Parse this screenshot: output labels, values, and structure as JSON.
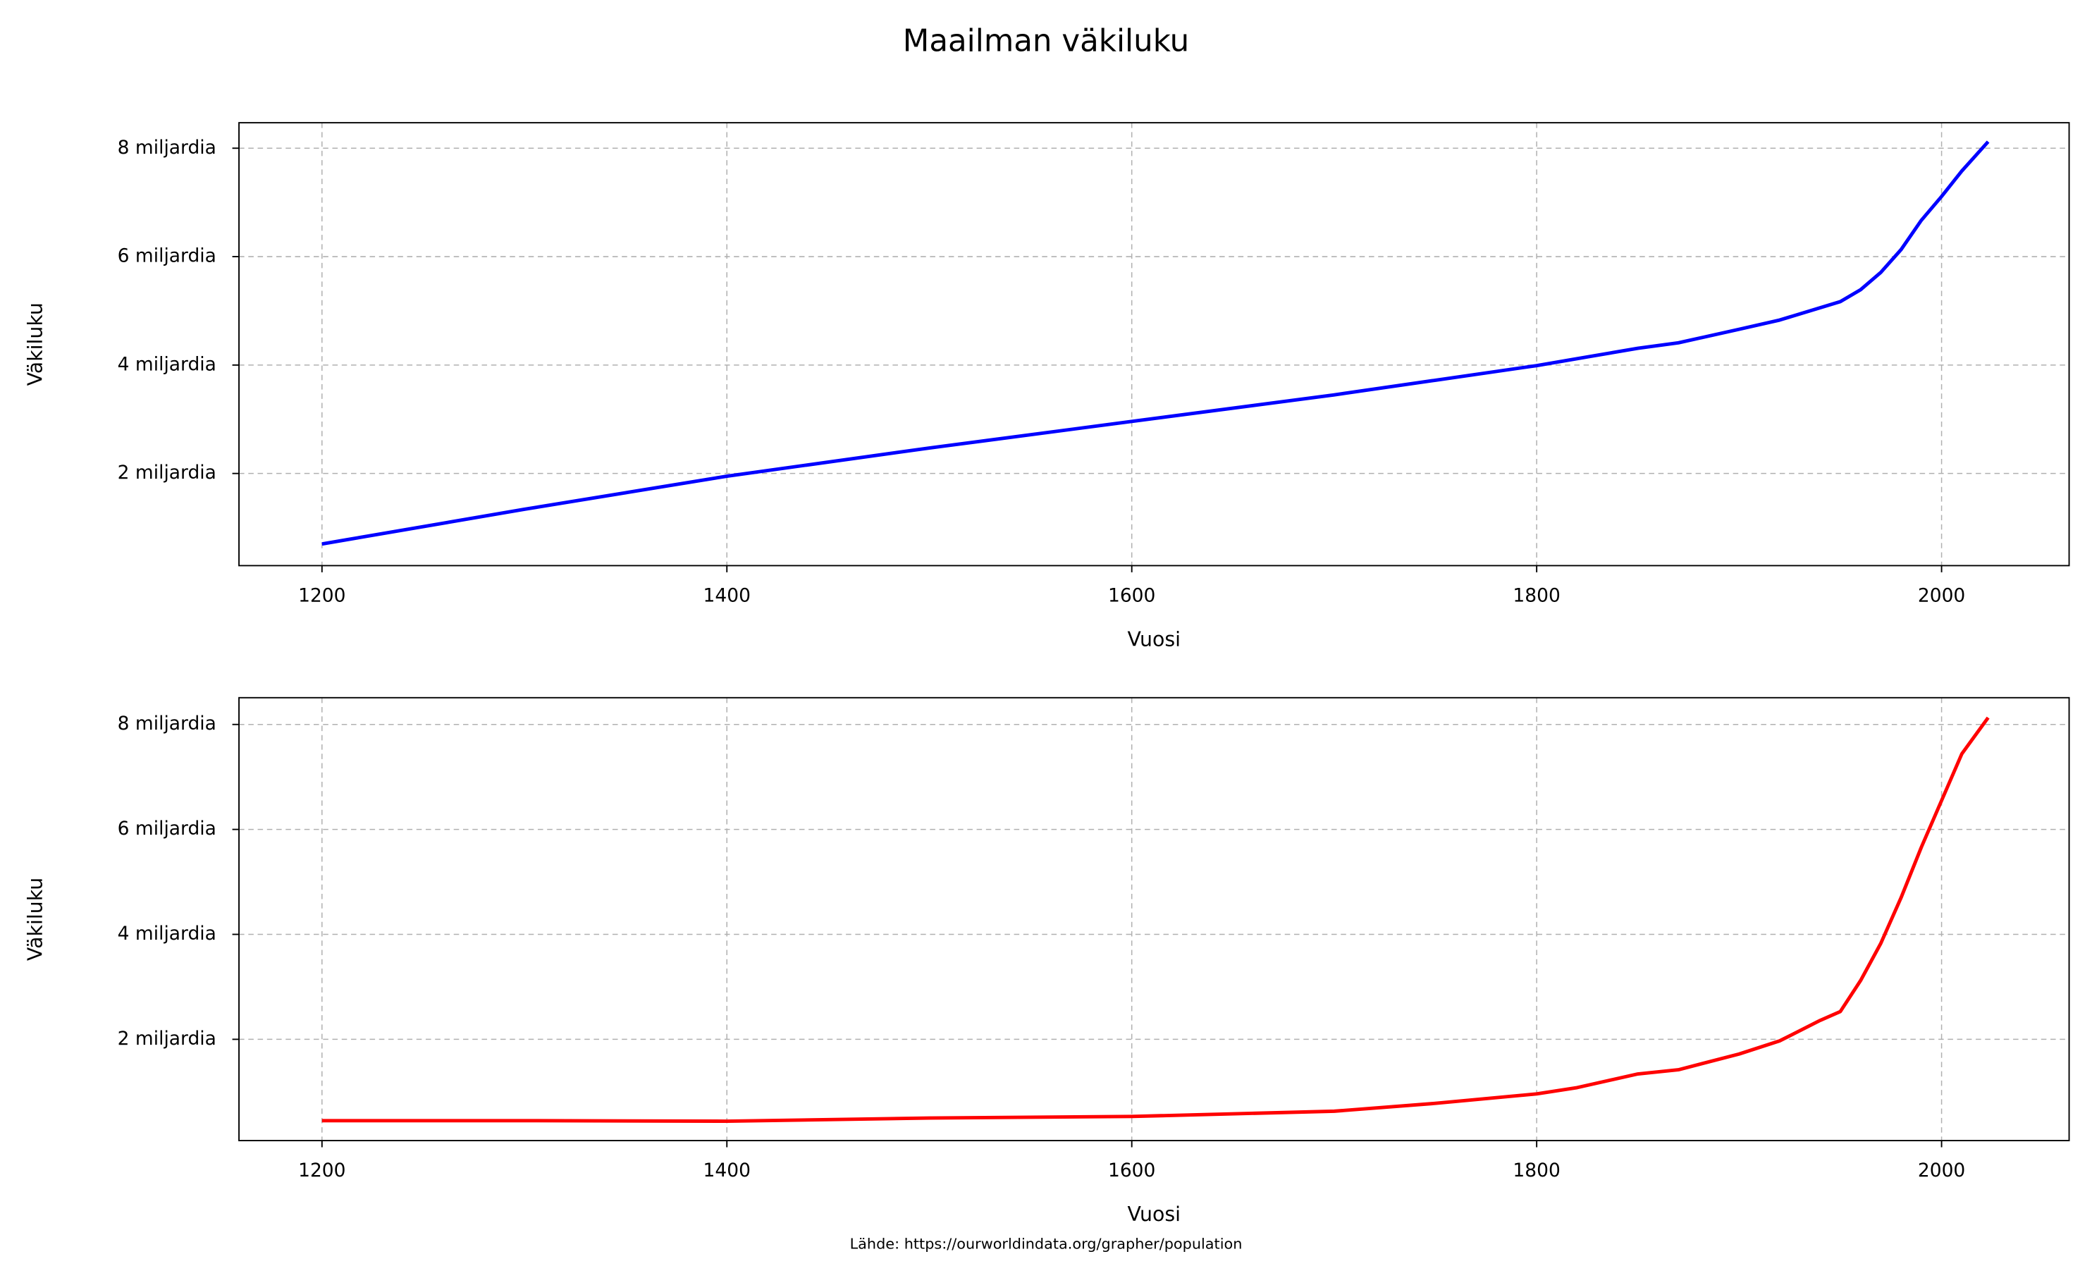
{
  "title": "Maailman väkiluku",
  "source": "Lähde: https://ourworldindata.org/grapher/population",
  "chart_data": [
    {
      "type": "line",
      "xlabel": "Vuosi",
      "ylabel": "Väkiluku",
      "color": "#0000ff",
      "grid": true,
      "x": [
        1200,
        1300,
        1400,
        1500,
        1600,
        1700,
        1750,
        1800,
        1850,
        1870,
        1900,
        1920,
        1950,
        1960,
        1970,
        1980,
        1990,
        2000,
        2010,
        2023
      ],
      "values": [
        0.7,
        1.34,
        1.95,
        2.47,
        2.96,
        3.45,
        3.72,
        3.99,
        4.31,
        4.41,
        4.66,
        4.83,
        5.17,
        5.39,
        5.71,
        6.13,
        6.67,
        7.11,
        7.58,
        8.12
      ],
      "xlim": [
        1159,
        2063
      ],
      "xticks": [
        1200,
        1400,
        1600,
        1800,
        2000
      ],
      "ylim": [
        0.3,
        8.47
      ],
      "yticks": [
        {
          "value": 2,
          "label": "2 miljardia"
        },
        {
          "value": 4,
          "label": "4 miljardia"
        },
        {
          "value": 6,
          "label": "6 miljardia"
        },
        {
          "value": 8,
          "label": "8 miljardia"
        }
      ]
    },
    {
      "type": "line",
      "xlabel": "Vuosi",
      "ylabel": "Väkiluku",
      "color": "#ff0000",
      "grid": true,
      "x": [
        1200,
        1300,
        1400,
        1500,
        1600,
        1700,
        1750,
        1800,
        1820,
        1850,
        1870,
        1900,
        1920,
        1940,
        1950,
        1960,
        1970,
        1980,
        1990,
        2000,
        2010,
        2023
      ],
      "values": [
        0.45,
        0.45,
        0.44,
        0.5,
        0.53,
        0.63,
        0.78,
        0.96,
        1.08,
        1.34,
        1.42,
        1.72,
        1.97,
        2.36,
        2.53,
        3.12,
        3.83,
        4.7,
        5.66,
        6.55,
        7.44,
        8.13
      ],
      "xlim": [
        1159,
        2063
      ],
      "xticks": [
        1200,
        1400,
        1600,
        1800,
        2000
      ],
      "ylim": [
        0.07,
        8.51
      ],
      "yticks": [
        {
          "value": 2,
          "label": "2 miljardia"
        },
        {
          "value": 4,
          "label": "4 miljardia"
        },
        {
          "value": 6,
          "label": "6 miljardia"
        },
        {
          "value": 8,
          "label": "8 miljardia"
        }
      ]
    }
  ]
}
